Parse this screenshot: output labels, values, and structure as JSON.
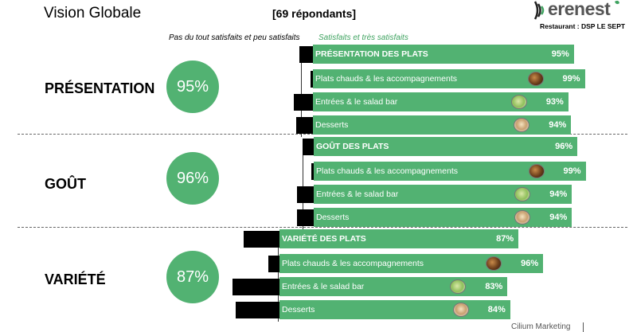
{
  "header": {
    "title": "Vision Globale",
    "respondents": "[69 répondants]",
    "logo_text": "erenest",
    "restaurant": "Restaurant : DSP LE SEPT"
  },
  "legend": {
    "negative": "Pas du tout satisfaits et peu satisfaits",
    "positive": "Satisfaits et très satisfaits"
  },
  "footer": {
    "text": "Cilium Marketing"
  },
  "colors": {
    "positive": "#52b272",
    "negative": "#000000"
  },
  "sections": [
    {
      "label": "PRÉSENTATION",
      "score": "95%"
    },
    {
      "label": "GOÛT",
      "score": "96%"
    },
    {
      "label": "VARIÉTÉ",
      "score": "87%"
    }
  ],
  "chart_data": {
    "type": "bar",
    "orientation": "horizontal-diverging",
    "series": [
      {
        "name": "Pas du tout satisfaits et peu satisfaits"
      },
      {
        "name": "Satisfaits et très satisfaits"
      }
    ],
    "groups": [
      {
        "section": "PRÉSENTATION",
        "rows": [
          {
            "label": "PRÉSENTATION DES PLATS",
            "value_label": "95%",
            "positive": 95,
            "negative": 5,
            "header": true,
            "icon": ""
          },
          {
            "label": "Plats chauds & les accompagnements",
            "value_label": "99%",
            "positive": 99,
            "negative": 1,
            "header": false,
            "icon": "hot"
          },
          {
            "label": "Entrées & le salad bar",
            "value_label": "93%",
            "positive": 93,
            "negative": 7,
            "header": false,
            "icon": "salad"
          },
          {
            "label": "Desserts",
            "value_label": "94%",
            "positive": 94,
            "negative": 6,
            "header": false,
            "icon": "dessert"
          }
        ]
      },
      {
        "section": "GOÛT",
        "rows": [
          {
            "label": "GOÛT DES PLATS",
            "value_label": "96%",
            "positive": 96,
            "negative": 4,
            "header": true,
            "icon": ""
          },
          {
            "label": "Plats chauds & les accompagnements",
            "value_label": "99%",
            "positive": 99,
            "negative": 1,
            "header": false,
            "icon": "hot"
          },
          {
            "label": "Entrées & le salad bar",
            "value_label": "94%",
            "positive": 94,
            "negative": 6,
            "header": false,
            "icon": "salad"
          },
          {
            "label": "Desserts",
            "value_label": "94%",
            "positive": 94,
            "negative": 6,
            "header": false,
            "icon": "dessert"
          }
        ]
      },
      {
        "section": "VARIÉTÉ",
        "rows": [
          {
            "label": "VARIÉTÉ DES PLATS",
            "value_label": "87%",
            "positive": 87,
            "negative": 13,
            "header": true,
            "icon": ""
          },
          {
            "label": "Plats chauds & les accompagnements",
            "value_label": "96%",
            "positive": 96,
            "negative": 4,
            "header": false,
            "icon": "hot"
          },
          {
            "label": "Entrées & le salad bar",
            "value_label": "83%",
            "positive": 83,
            "negative": 17,
            "header": false,
            "icon": "salad"
          },
          {
            "label": "Desserts",
            "value_label": "84%",
            "positive": 84,
            "negative": 16,
            "header": false,
            "icon": "dessert"
          }
        ]
      }
    ]
  }
}
